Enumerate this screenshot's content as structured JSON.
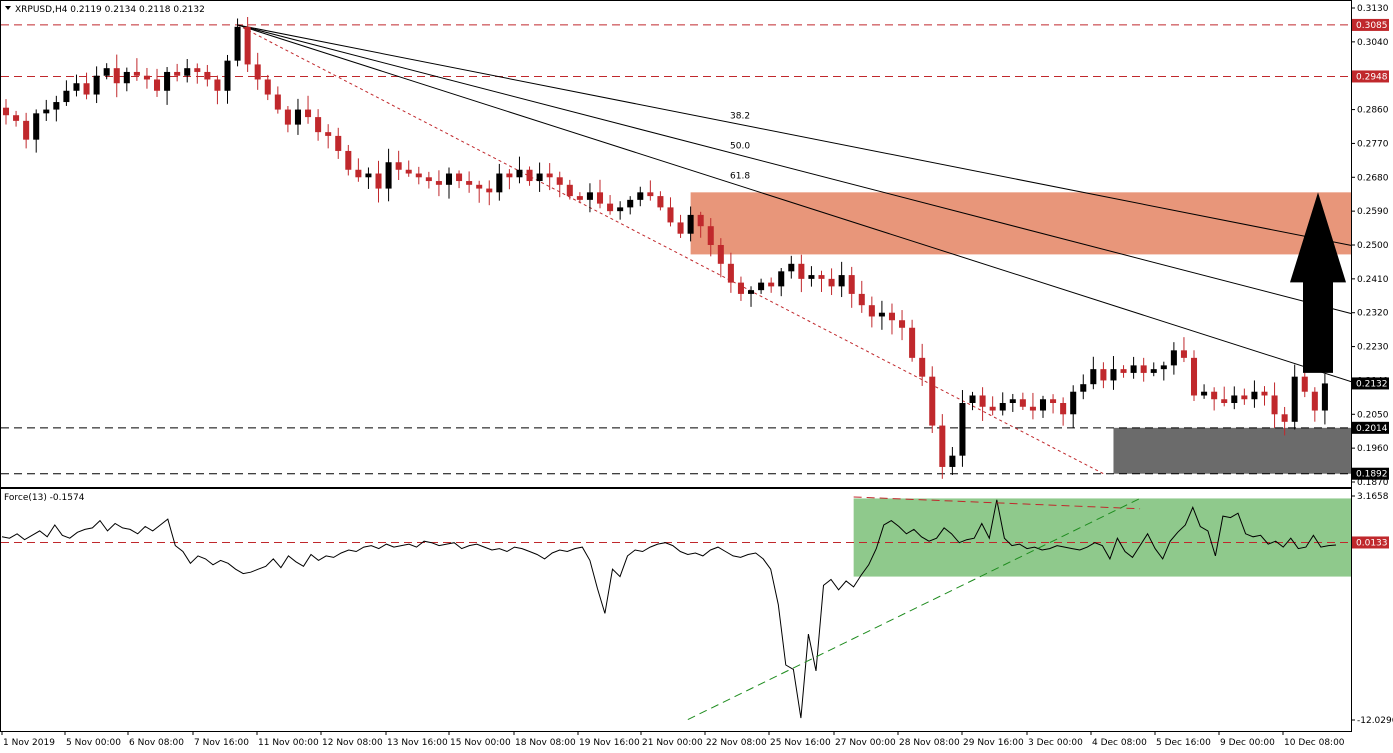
{
  "header": {
    "symbol_line": "XRPUSD,H4  0.2119 0.2134 0.2118 0.2132",
    "indicator_line": "Force(13) -0.1574"
  },
  "colors": {
    "bull": "#000000",
    "bear": "#c0282c",
    "resistance_zone": "#e8967a",
    "support_zone": "#6b6b6b",
    "force_zone": "#8fc98c",
    "fib_line": "#000000",
    "dashed_red": "#c0282c",
    "dashed_green": "#1e8c1e",
    "arrow": "#000000",
    "label_red": "#c0282c",
    "label_black": "#000000"
  },
  "chart_data": [
    {
      "type": "candlestick",
      "title": "XRPUSD,H4",
      "ylim": [
        0.187,
        0.313
      ],
      "y_ticks": [
        "0.3130",
        "0.3040",
        "0.2950",
        "0.2860",
        "0.2770",
        "0.2680",
        "0.2590",
        "0.2500",
        "0.2410",
        "0.2320",
        "0.2230",
        "0.2140",
        "0.2050",
        "0.1960",
        "0.1870"
      ],
      "x_ticks": [
        "1 Nov 2019",
        "5 Nov 00:00",
        "6 Nov 08:00",
        "7 Nov 16:00",
        "11 Nov 00:00",
        "12 Nov 08:00",
        "13 Nov 16:00",
        "15 Nov 00:00",
        "18 Nov 08:00",
        "19 Nov 16:00",
        "21 Nov 00:00",
        "22 Nov 08:00",
        "25 Nov 16:00",
        "27 Nov 00:00",
        "28 Nov 08:00",
        "29 Nov 16:00",
        "3 Dec 00:00",
        "4 Dec 08:00",
        "5 Dec 16:00",
        "9 Dec 00:00",
        "10 Dec 08:00"
      ],
      "candle_count": 132,
      "candles_close": [
        0.2845,
        0.283,
        0.278,
        0.285,
        0.286,
        0.288,
        0.291,
        0.293,
        0.29,
        0.295,
        0.297,
        0.293,
        0.296,
        0.295,
        0.294,
        0.291,
        0.296,
        0.295,
        0.297,
        0.296,
        0.294,
        0.291,
        0.299,
        0.308,
        0.298,
        0.294,
        0.29,
        0.286,
        0.282,
        0.286,
        0.284,
        0.28,
        0.279,
        0.275,
        0.27,
        0.268,
        0.269,
        0.265,
        0.272,
        0.27,
        0.269,
        0.268,
        0.267,
        0.266,
        0.269,
        0.267,
        0.266,
        0.265,
        0.264,
        0.269,
        0.268,
        0.27,
        0.267,
        0.269,
        0.268,
        0.266,
        0.263,
        0.262,
        0.264,
        0.261,
        0.259,
        0.26,
        0.262,
        0.264,
        0.263,
        0.26,
        0.256,
        0.253,
        0.258,
        0.255,
        0.25,
        0.245,
        0.24,
        0.237,
        0.238,
        0.24,
        0.239,
        0.243,
        0.245,
        0.241,
        0.242,
        0.241,
        0.239,
        0.242,
        0.237,
        0.234,
        0.231,
        0.232,
        0.23,
        0.228,
        0.22,
        0.215,
        0.202,
        0.191,
        0.194,
        0.208,
        0.21,
        0.207,
        0.206,
        0.208,
        0.209,
        0.207,
        0.206,
        0.209,
        0.208,
        0.205,
        0.211,
        0.213,
        0.217,
        0.214,
        0.217,
        0.216,
        0.218,
        0.216,
        0.217,
        0.218,
        0.222,
        0.22,
        0.21,
        0.211,
        0.209,
        0.208,
        0.21,
        0.209,
        0.211,
        0.21,
        0.205,
        0.203,
        0.215,
        0.211,
        0.206,
        0.2132
      ],
      "horizontal_levels": [
        {
          "value": 0.3085,
          "label": "0.3085",
          "style": "dashed-red"
        },
        {
          "value": 0.2948,
          "label": "0.2948",
          "style": "dashed-red"
        },
        {
          "value": 0.2014,
          "label": "0.2014",
          "style": "dashed-black"
        },
        {
          "value": 0.1892,
          "label": "0.1892",
          "style": "dashed-black"
        }
      ],
      "current_price": {
        "value": 0.2132,
        "label": "0.2132"
      },
      "fibonacci_fan": {
        "origin": {
          "candle": 23,
          "price": 0.3085
        },
        "end": {
          "candle": 109,
          "price": 0.1892
        },
        "levels": [
          "38.2",
          "50.0",
          "61.8"
        ]
      },
      "resistance_zone": {
        "from_candle": 68,
        "price_low": 0.2475,
        "price_high": 0.264
      },
      "support_zone": {
        "from_candle": 110,
        "price_low": 0.1892,
        "price_high": 0.2014
      },
      "annotation": {
        "type": "arrow-up",
        "price_from": 0.216,
        "price_to": 0.264
      }
    },
    {
      "type": "line",
      "title": "Force(13) -0.1574",
      "ylim": [
        -12.0296,
        3.1658
      ],
      "y_ticks": [
        "3.1658",
        "-12.0296"
      ],
      "level": {
        "value": 0.0133,
        "label": "0.0133"
      },
      "values": [
        0.4,
        0.3,
        0.6,
        0.2,
        0.5,
        0.8,
        0.4,
        1.2,
        0.5,
        0.3,
        0.7,
        0.9,
        1.0,
        1.5,
        0.8,
        1.3,
        1.0,
        0.9,
        0.6,
        1.1,
        0.8,
        1.2,
        1.6,
        -0.2,
        -0.6,
        -1.4,
        -0.9,
        -1.1,
        -1.5,
        -1.2,
        -1.4,
        -1.8,
        -2.1,
        -2.0,
        -1.8,
        -1.6,
        -1.1,
        -1.7,
        -0.9,
        -1.3,
        -1.6,
        -0.8,
        -1.2,
        -0.9,
        -1.0,
        -0.7,
        -0.5,
        -0.6,
        -0.3,
        -0.2,
        -0.4,
        -0.1,
        -0.3,
        -0.2,
        -0.1,
        -0.3,
        0.1,
        0.0,
        -0.2,
        -0.1,
        0.0,
        -0.4,
        -0.2,
        -0.1,
        -0.3,
        -0.5,
        -0.4,
        -0.6,
        -0.3,
        -0.4,
        -0.6,
        -0.8,
        -1.1,
        -0.7,
        -0.5,
        -0.6,
        -0.4,
        -0.3,
        -1.2,
        -3.1,
        -4.8,
        -1.8,
        -2.3,
        -0.9,
        -0.5,
        -0.6,
        -0.3,
        -0.1,
        0.0,
        -0.2,
        -0.6,
        -0.8,
        -0.7,
        -0.9,
        -0.5,
        -0.3,
        -0.6,
        -0.9,
        -1.0,
        -0.8,
        -0.7,
        -1.1,
        -1.8,
        -4.2,
        -8.3,
        -8.6,
        -11.9,
        -6.2,
        -8.7,
        -2.9,
        -2.5,
        -3.2,
        -2.6,
        -3.0,
        -2.2,
        -1.5,
        -0.4,
        1.2,
        1.5,
        1.1,
        0.6,
        0.9,
        0.4,
        0.1,
        0.3,
        1.0,
        0.6,
        0.0,
        0.2,
        0.3,
        1.3,
        0.3,
        2.9,
        0.3,
        -0.2,
        -0.1
      ],
      "force_values_tail": [
        -0.4,
        -0.3,
        -0.5,
        -0.4,
        -0.2,
        -0.3,
        -0.4,
        -0.5,
        -0.3,
        0.0,
        -0.2,
        -1.1,
        0.3,
        -0.6,
        -1.0,
        -0.2,
        0.6,
        -0.4,
        -1.1,
        0.1,
        0.7,
        1.2,
        2.4,
        1.1,
        0.8,
        -0.9,
        1.8,
        1.7,
        2.0,
        0.6,
        0.4,
        0.5,
        -0.1,
        0.1,
        -0.3,
        0.3,
        -0.4,
        -0.3,
        0.5,
        -0.3,
        -0.2,
        -0.16
      ],
      "green_zone": {
        "from_index": 113,
        "value_low": -2.3,
        "value_high": 3.0
      },
      "trend_lines": [
        {
          "style": "dashed-red",
          "from": {
            "index": 113,
            "value": 3.1
          },
          "to": {
            "index": 151,
            "value": 2.3
          }
        },
        {
          "style": "dashed-green",
          "from": {
            "index": 91,
            "value": -12.0
          },
          "to": {
            "index": 151,
            "value": 3.0
          }
        }
      ]
    }
  ]
}
